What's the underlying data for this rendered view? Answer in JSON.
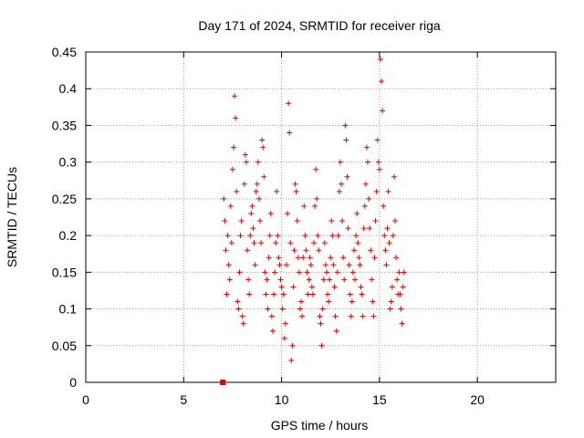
{
  "chart_data": {
    "type": "scatter",
    "title": "Day 171 of 2024, SRMTID for receiver riga",
    "xlabel": "GPS time / hours",
    "ylabel": "SRMTID / TECUs",
    "xlim": [
      0,
      24
    ],
    "ylim": [
      0,
      0.45
    ],
    "xticks": [
      "0",
      "5",
      "10",
      "15",
      "20"
    ],
    "yticks": [
      "0",
      "0.05",
      "0.1",
      "0.15",
      "0.2",
      "0.25",
      "0.3",
      "0.35",
      "0.4",
      "0.45"
    ],
    "grid": true,
    "legend": "none",
    "marker_color": "#e00000",
    "series": [
      {
        "marker": "plus",
        "x_range": [
          7.0,
          16.3
        ],
        "y_typical": [
          0.08,
          0.28
        ],
        "points": [
          [
            7.05,
            0.25
          ],
          [
            7.1,
            0.22
          ],
          [
            7.15,
            0.18
          ],
          [
            7.2,
            0.12
          ],
          [
            7.25,
            0.2
          ],
          [
            7.3,
            0.16
          ],
          [
            7.35,
            0.14
          ],
          [
            7.4,
            0.24
          ],
          [
            7.45,
            0.19
          ],
          [
            7.5,
            0.29
          ],
          [
            7.55,
            0.32
          ],
          [
            7.6,
            0.39
          ],
          [
            7.65,
            0.36
          ],
          [
            7.7,
            0.26
          ],
          [
            7.75,
            0.11
          ],
          [
            7.8,
            0.1
          ],
          [
            7.85,
            0.15
          ],
          [
            7.9,
            0.2
          ],
          [
            7.95,
            0.22
          ],
          [
            8.0,
            0.09
          ],
          [
            8.05,
            0.08
          ],
          [
            8.1,
            0.27
          ],
          [
            8.15,
            0.31
          ],
          [
            8.2,
            0.3
          ],
          [
            8.25,
            0.18
          ],
          [
            8.3,
            0.14
          ],
          [
            8.35,
            0.12
          ],
          [
            8.4,
            0.2
          ],
          [
            8.45,
            0.23
          ],
          [
            8.5,
            0.24
          ],
          [
            8.55,
            0.21
          ],
          [
            8.6,
            0.19
          ],
          [
            8.65,
            0.16
          ],
          [
            8.7,
            0.26
          ],
          [
            8.75,
            0.27
          ],
          [
            8.8,
            0.3
          ],
          [
            8.85,
            0.25
          ],
          [
            8.9,
            0.22
          ],
          [
            8.95,
            0.19
          ],
          [
            9.0,
            0.33
          ],
          [
            9.05,
            0.32
          ],
          [
            9.1,
            0.28
          ],
          [
            9.15,
            0.15
          ],
          [
            9.2,
            0.12
          ],
          [
            9.25,
            0.14
          ],
          [
            9.3,
            0.1
          ],
          [
            9.35,
            0.17
          ],
          [
            9.4,
            0.2
          ],
          [
            9.45,
            0.23
          ],
          [
            9.5,
            0.09
          ],
          [
            9.55,
            0.07
          ],
          [
            9.6,
            0.12
          ],
          [
            9.65,
            0.15
          ],
          [
            9.7,
            0.19
          ],
          [
            9.75,
            0.26
          ],
          [
            9.8,
            0.2
          ],
          [
            9.85,
            0.17
          ],
          [
            9.9,
            0.16
          ],
          [
            9.95,
            0.14
          ],
          [
            10.0,
            0.13
          ],
          [
            10.05,
            0.1
          ],
          [
            10.1,
            0.12
          ],
          [
            10.15,
            0.06
          ],
          [
            10.2,
            0.08
          ],
          [
            10.25,
            0.16
          ],
          [
            10.3,
            0.23
          ],
          [
            10.35,
            0.38
          ],
          [
            10.4,
            0.34
          ],
          [
            10.45,
            0.19
          ],
          [
            10.5,
            0.03
          ],
          [
            10.55,
            0.05
          ],
          [
            10.6,
            0.13
          ],
          [
            10.65,
            0.18
          ],
          [
            10.7,
            0.27
          ],
          [
            10.75,
            0.26
          ],
          [
            10.8,
            0.22
          ],
          [
            10.85,
            0.17
          ],
          [
            10.9,
            0.15
          ],
          [
            10.95,
            0.1
          ],
          [
            11.0,
            0.11
          ],
          [
            11.05,
            0.09
          ],
          [
            11.1,
            0.17
          ],
          [
            11.15,
            0.24
          ],
          [
            11.2,
            0.2
          ],
          [
            11.25,
            0.18
          ],
          [
            11.3,
            0.15
          ],
          [
            11.35,
            0.12
          ],
          [
            11.4,
            0.14
          ],
          [
            11.45,
            0.17
          ],
          [
            11.5,
            0.16
          ],
          [
            11.55,
            0.13
          ],
          [
            11.6,
            0.12
          ],
          [
            11.65,
            0.19
          ],
          [
            11.7,
            0.24
          ],
          [
            11.75,
            0.29
          ],
          [
            11.8,
            0.25
          ],
          [
            11.85,
            0.2
          ],
          [
            11.9,
            0.18
          ],
          [
            11.95,
            0.09
          ],
          [
            12.0,
            0.08
          ],
          [
            12.05,
            0.05
          ],
          [
            12.1,
            0.1
          ],
          [
            12.15,
            0.14
          ],
          [
            12.2,
            0.19
          ],
          [
            12.25,
            0.16
          ],
          [
            12.3,
            0.15
          ],
          [
            12.35,
            0.12
          ],
          [
            12.4,
            0.11
          ],
          [
            12.45,
            0.14
          ],
          [
            12.5,
            0.17
          ],
          [
            12.55,
            0.22
          ],
          [
            12.6,
            0.2
          ],
          [
            12.65,
            0.16
          ],
          [
            12.7,
            0.13
          ],
          [
            12.75,
            0.09
          ],
          [
            12.8,
            0.07
          ],
          [
            12.85,
            0.15
          ],
          [
            12.9,
            0.2
          ],
          [
            12.95,
            0.26
          ],
          [
            13.0,
            0.3
          ],
          [
            13.05,
            0.27
          ],
          [
            13.1,
            0.22
          ],
          [
            13.15,
            0.17
          ],
          [
            13.2,
            0.14
          ],
          [
            13.25,
            0.35
          ],
          [
            13.3,
            0.33
          ],
          [
            13.35,
            0.28
          ],
          [
            13.4,
            0.21
          ],
          [
            13.45,
            0.16
          ],
          [
            13.5,
            0.12
          ],
          [
            13.55,
            0.09
          ],
          [
            13.6,
            0.11
          ],
          [
            13.65,
            0.15
          ],
          [
            13.7,
            0.18
          ],
          [
            13.75,
            0.14
          ],
          [
            13.8,
            0.2
          ],
          [
            13.85,
            0.23
          ],
          [
            13.9,
            0.19
          ],
          [
            13.95,
            0.17
          ],
          [
            14.0,
            0.16
          ],
          [
            14.05,
            0.13
          ],
          [
            14.1,
            0.12
          ],
          [
            14.15,
            0.09
          ],
          [
            14.2,
            0.21
          ],
          [
            14.25,
            0.24
          ],
          [
            14.3,
            0.27
          ],
          [
            14.35,
            0.32
          ],
          [
            14.4,
            0.3
          ],
          [
            14.45,
            0.25
          ],
          [
            14.5,
            0.21
          ],
          [
            14.55,
            0.18
          ],
          [
            14.6,
            0.14
          ],
          [
            14.65,
            0.11
          ],
          [
            14.7,
            0.09
          ],
          [
            14.75,
            0.17
          ],
          [
            14.8,
            0.22
          ],
          [
            14.85,
            0.26
          ],
          [
            14.9,
            0.33
          ],
          [
            14.95,
            0.3
          ],
          [
            15.0,
            0.29
          ],
          [
            15.05,
            0.44
          ],
          [
            15.1,
            0.41
          ],
          [
            15.15,
            0.37
          ],
          [
            15.2,
            0.24
          ],
          [
            15.25,
            0.2
          ],
          [
            15.3,
            0.18
          ],
          [
            15.35,
            0.16
          ],
          [
            15.4,
            0.21
          ],
          [
            15.45,
            0.26
          ],
          [
            15.5,
            0.19
          ],
          [
            15.55,
            0.1
          ],
          [
            15.6,
            0.11
          ],
          [
            15.65,
            0.13
          ],
          [
            15.7,
            0.2
          ],
          [
            15.75,
            0.28
          ],
          [
            15.8,
            0.22
          ],
          [
            15.85,
            0.17
          ],
          [
            15.9,
            0.14
          ],
          [
            15.95,
            0.12
          ],
          [
            16.0,
            0.15
          ],
          [
            16.05,
            0.12
          ],
          [
            16.1,
            0.1
          ],
          [
            16.15,
            0.08
          ],
          [
            16.2,
            0.13
          ],
          [
            16.25,
            0.15
          ]
        ]
      },
      {
        "marker": "square",
        "points": [
          [
            7.0,
            0.0
          ]
        ]
      }
    ]
  }
}
